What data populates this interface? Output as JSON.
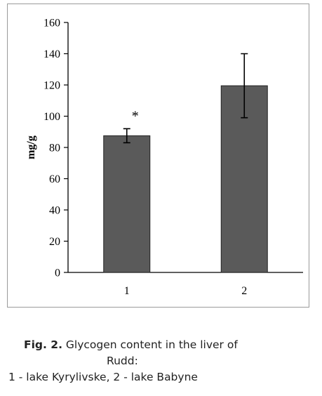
{
  "chart_data": {
    "type": "bar",
    "categories": [
      "1",
      "2"
    ],
    "values": [
      87.5,
      119.5
    ],
    "error": [
      4.5,
      20.5
    ],
    "annotations": [
      {
        "category": "1",
        "text": "*"
      }
    ],
    "ylabel": "mg/g",
    "xlabel": "",
    "ylim": [
      0,
      160
    ],
    "yticks": [
      0,
      20,
      40,
      60,
      80,
      100,
      120,
      140,
      160
    ],
    "grid": false,
    "bar_color": "#5a5a5a"
  },
  "caption": {
    "label": "Fig. 2.",
    "line1": " Glycogen content in the liver of",
    "line2": "Rudd:",
    "line3": "1 - lake Kyrylivske, 2 - lake Babyne"
  }
}
